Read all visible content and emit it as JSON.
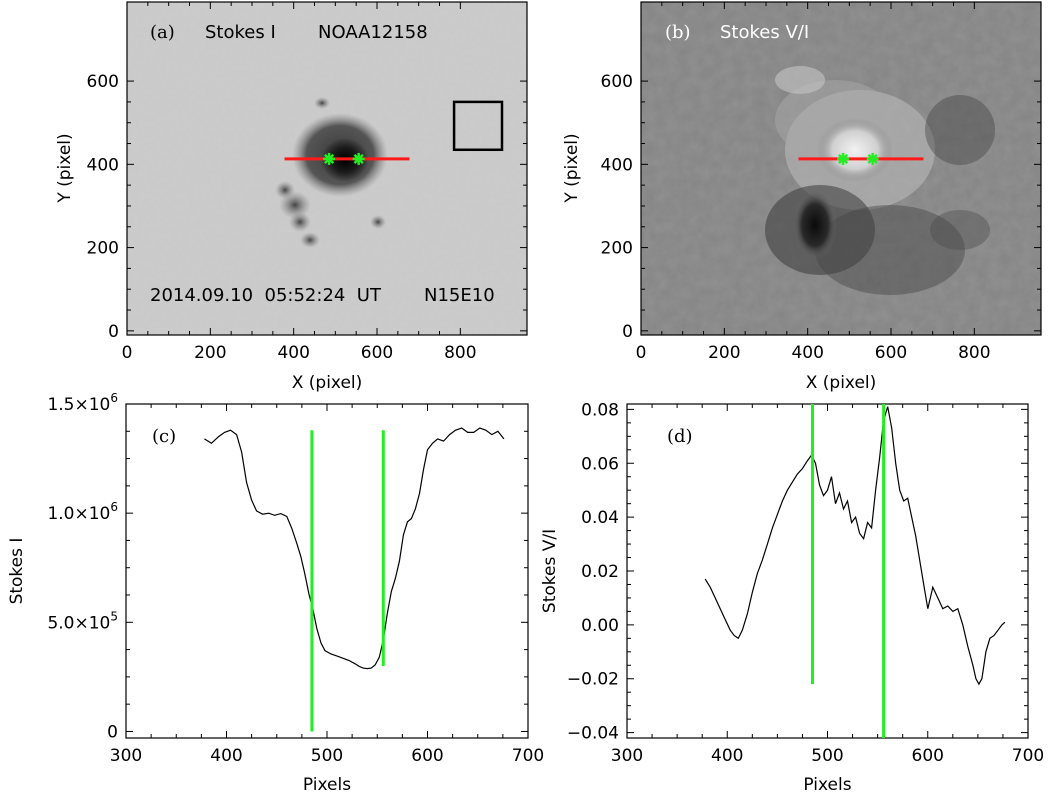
{
  "figure": {
    "panel_a": {
      "label": "(a)",
      "title": "Stokes I",
      "region": "NOAA12158",
      "timestamp": "2014.09.10  05:52:24  UT",
      "location": "N15E10",
      "xlabel": "X (pixel)",
      "ylabel": "Y (pixel)"
    },
    "panel_b": {
      "label": "(b)",
      "title": "Stokes V/I",
      "xlabel": "X (pixel)",
      "ylabel": "Y (pixel)"
    },
    "panel_c": {
      "label": "(c)"
    },
    "panel_d": {
      "label": "(d)"
    }
  },
  "chart_data": [
    {
      "type": "heatmap",
      "panel": "a",
      "xlabel": "X (pixel)",
      "ylabel": "Y (pixel)",
      "xlim": [
        0,
        960
      ],
      "ylim": [
        -10,
        790
      ],
      "xticks": [
        0,
        200,
        400,
        600,
        800
      ],
      "yticks": [
        0,
        200,
        400,
        600
      ],
      "slit": {
        "x": [
          378,
          678
        ],
        "y": 413,
        "color": "#ff1a1a"
      },
      "markers": [
        {
          "x": 485,
          "y": 413
        },
        {
          "x": 556,
          "y": 413
        }
      ],
      "marker_color": "#22ee22",
      "box": {
        "x": [
          785,
          900
        ],
        "y": [
          435,
          550
        ]
      }
    },
    {
      "type": "heatmap",
      "panel": "b",
      "xlabel": "X (pixel)",
      "ylabel": "Y (pixel)",
      "xlim": [
        0,
        960
      ],
      "ylim": [
        -10,
        790
      ],
      "xticks": [
        0,
        200,
        400,
        600,
        800
      ],
      "yticks": [
        0,
        200,
        400,
        600
      ],
      "slit": {
        "x": [
          378,
          678
        ],
        "y": 413,
        "color": "#ff1a1a"
      },
      "markers": [
        {
          "x": 485,
          "y": 413
        },
        {
          "x": 556,
          "y": 413
        }
      ],
      "marker_color": "#22ee22"
    },
    {
      "type": "line",
      "panel": "c",
      "xlabel": "Pixels",
      "ylabel": "Stokes I",
      "xlim": [
        300,
        700
      ],
      "ylim": [
        -30000,
        1500000
      ],
      "xticks": [
        300,
        400,
        500,
        600,
        700
      ],
      "yticks": [
        0,
        500000,
        1000000,
        1500000
      ],
      "ytick_labels": [
        {
          "mantissa": "0",
          "exp": ""
        },
        {
          "mantissa": "5.0×10",
          "exp": "5"
        },
        {
          "mantissa": "1.0×10",
          "exp": "6"
        },
        {
          "mantissa": "1.5×10",
          "exp": "6"
        }
      ],
      "x": [
        378,
        385,
        392,
        398,
        404,
        410,
        415,
        420,
        425,
        430,
        436,
        442,
        448,
        454,
        460,
        465,
        470,
        474,
        478,
        482,
        486,
        490,
        494,
        498,
        504,
        510,
        516,
        522,
        528,
        532,
        536,
        540,
        544,
        548,
        552,
        556,
        560,
        564,
        568,
        572,
        576,
        580,
        584,
        588,
        592,
        596,
        600,
        605,
        610,
        616,
        622,
        628,
        634,
        640,
        646,
        652,
        658,
        664,
        670,
        676
      ],
      "y": [
        1340000,
        1320000,
        1350000,
        1370000,
        1380000,
        1360000,
        1280000,
        1140000,
        1060000,
        1010000,
        995000,
        1000000,
        990000,
        998000,
        985000,
        930000,
        860000,
        800000,
        720000,
        630000,
        560000,
        470000,
        405000,
        370000,
        355000,
        345000,
        335000,
        325000,
        310000,
        298000,
        290000,
        288000,
        290000,
        305000,
        340000,
        420000,
        540000,
        640000,
        700000,
        780000,
        900000,
        960000,
        975000,
        1020000,
        1090000,
        1200000,
        1290000,
        1320000,
        1340000,
        1330000,
        1360000,
        1380000,
        1390000,
        1370000,
        1370000,
        1390000,
        1380000,
        1360000,
        1375000,
        1340000
      ],
      "vlines": [
        {
          "x": 485,
          "y": [
            0,
            1380000
          ]
        },
        {
          "x": 556,
          "y": [
            300000,
            1380000
          ]
        }
      ],
      "vline_color": "#22ee22"
    },
    {
      "type": "line",
      "panel": "d",
      "xlabel": "Pixels",
      "ylabel": "Stokes V/I",
      "xlim": [
        300,
        700
      ],
      "ylim": [
        -0.042,
        0.082
      ],
      "xticks": [
        300,
        400,
        500,
        600,
        700
      ],
      "yticks": [
        -0.04,
        -0.02,
        0.0,
        0.02,
        0.04,
        0.06,
        0.08
      ],
      "ytick_labels": [
        "−0.04",
        "−0.02",
        "0.00",
        "0.02",
        "0.04",
        "0.06",
        "0.08"
      ],
      "x": [
        378,
        383,
        388,
        393,
        398,
        403,
        407,
        411,
        415,
        420,
        425,
        430,
        435,
        440,
        445,
        450,
        455,
        460,
        465,
        470,
        475,
        480,
        484,
        488,
        492,
        496,
        500,
        504,
        508,
        512,
        516,
        520,
        524,
        528,
        532,
        536,
        540,
        544,
        548,
        552,
        556,
        560,
        564,
        568,
        572,
        576,
        580,
        584,
        588,
        592,
        596,
        600,
        605,
        610,
        615,
        620,
        625,
        630,
        635,
        640,
        645,
        648,
        651,
        654,
        658,
        662,
        666,
        670,
        674,
        677
      ],
      "y": [
        0.017,
        0.014,
        0.01,
        0.006,
        0.002,
        -0.002,
        -0.004,
        -0.005,
        -0.002,
        0.004,
        0.012,
        0.019,
        0.024,
        0.03,
        0.036,
        0.041,
        0.046,
        0.05,
        0.053,
        0.056,
        0.058,
        0.061,
        0.063,
        0.06,
        0.052,
        0.048,
        0.05,
        0.055,
        0.045,
        0.049,
        0.043,
        0.046,
        0.038,
        0.04,
        0.034,
        0.032,
        0.038,
        0.036,
        0.05,
        0.062,
        0.076,
        0.081,
        0.073,
        0.06,
        0.05,
        0.046,
        0.047,
        0.04,
        0.033,
        0.024,
        0.015,
        0.006,
        0.014,
        0.01,
        0.006,
        0.007,
        0.005,
        0.006,
        0.0,
        -0.008,
        -0.015,
        -0.02,
        -0.022,
        -0.02,
        -0.01,
        -0.005,
        -0.004,
        -0.002,
        0.0,
        0.001
      ],
      "vlines": [
        {
          "x": 485,
          "y": [
            -0.022,
            0.082
          ]
        },
        {
          "x": 556,
          "y": [
            -0.042,
            0.082
          ]
        }
      ],
      "vline_color": "#22ee22"
    }
  ]
}
